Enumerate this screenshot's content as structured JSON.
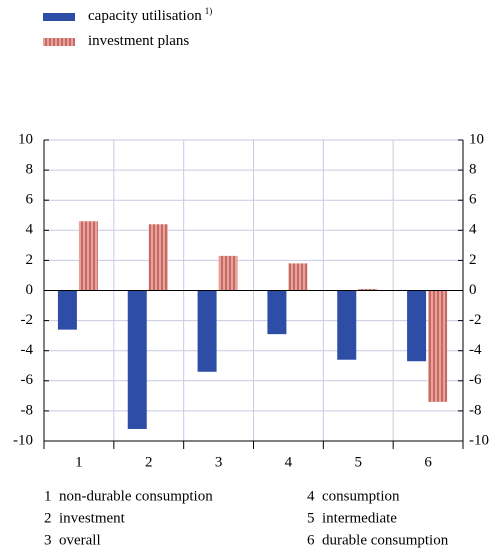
{
  "chart_data": {
    "type": "bar",
    "categories": [
      "1",
      "2",
      "3",
      "4",
      "5",
      "6"
    ],
    "category_notes": [
      "non-durable consumption",
      "investment",
      "overall",
      "consumption",
      "intermediate",
      "durable consumption"
    ],
    "series": [
      {
        "name": "capacity utilisation",
        "name_note": "1)",
        "color": "#2e4da6",
        "values": [
          -2.6,
          -9.2,
          -5.4,
          -2.9,
          -4.6,
          -4.7
        ]
      },
      {
        "name": "investment plans",
        "color": "#e9a497",
        "stripe_color": "#a0303a",
        "values": [
          4.6,
          4.4,
          2.3,
          1.8,
          0.1,
          -7.4
        ]
      }
    ],
    "ylim": [
      -10,
      10
    ],
    "yticks": [
      10,
      8,
      6,
      4,
      2,
      0,
      -2,
      -4,
      -6,
      -8,
      -10
    ],
    "y2lim": [
      -10,
      10
    ],
    "y2ticks": [
      10,
      8,
      6,
      4,
      2,
      0,
      -2,
      -4,
      -6,
      -8,
      -10
    ],
    "grid": true
  }
}
